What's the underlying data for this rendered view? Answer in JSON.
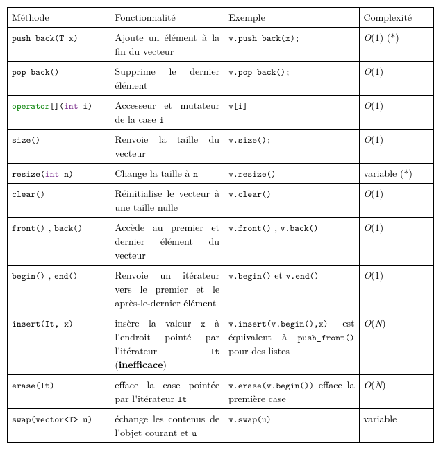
{
  "headers": {
    "method": "Méthode",
    "functionality": "Fonctionnalité",
    "example": "Exemple",
    "complexity": "Complexité"
  },
  "rows": [
    {
      "method_html": "<span class='mono'>push_back(T x)</span>",
      "func_html": "Ajoute un élément à la fin du vecteur",
      "example_html": "<span class='mono'>v.push_back(x);</span>",
      "complexity_html": "<span class='math'>O</span>(1) (*)"
    },
    {
      "method_html": "<span class='mono'>pop_back()</span>",
      "func_html": "Supprime le dernier élément",
      "example_html": "<span class='mono'>v.pop_back();</span>",
      "complexity_html": "<span class='math'>O</span>(1)"
    },
    {
      "method_html": "<span class='kw-operator'>operator</span><span class='mono'>[](</span><span class='kw-type'>int</span><span class='mono'> i)</span>",
      "func_html": "Accesseur et muta&shy;teur de la case <span class='mono'>i</span>",
      "example_html": "<span class='mono'>v[i]</span>",
      "complexity_html": "<span class='math'>O</span>(1)"
    },
    {
      "method_html": "<span class='mono'>size()</span>",
      "func_html": "Renvoie la taille du vecteur",
      "example_html": "<span class='mono'>v.size();</span>",
      "complexity_html": "<span class='math'>O</span>(1)"
    },
    {
      "method_html": "<span class='mono'>resize(</span><span class='kw-type'>int</span><span class='mono'> n)</span>",
      "func_html": "Change la taille à <span class='mono'>n</span>",
      "example_html": "<span class='mono'>v.resize()</span>",
      "complexity_html": "variable (*)"
    },
    {
      "method_html": "<span class='mono'>clear()</span>",
      "func_html": "Réinitialise le vec&shy;teur à une taille nulle",
      "example_html": "<span class='mono'>v.clear()</span>",
      "complexity_html": "<span class='math'>O</span>(1)"
    },
    {
      "method_html": "<span class='mono'>front()</span> , <span class='mono'>back()</span>",
      "func_html": "Accède au premier et dernier élément du vecteur",
      "example_html": "<span class='mono'>v.front()</span> , <span class='mono'>v.back()</span>",
      "complexity_html": "<span class='math'>O</span>(1)"
    },
    {
      "method_html": "<span class='mono'>begin()</span> , <span class='mono'>end()</span>",
      "func_html": "Renvoie un itérateur vers le premier et le après-le-dernier élé&shy;ment",
      "example_html": "<span class='mono'>v.begin()</span> et <span class='mono'>v.end()</span>",
      "complexity_html": "<span class='math'>O</span>(1)"
    },
    {
      "method_html": "<span class='mono'>insert(It, x)</span>",
      "func_html": "insère la valeur <span class='mono'>x</span> à l'endroit pointé par l'itérateur <span class='mono'>It</span> (<span class='bold'>inefficace</span>)",
      "example_html": "<span class='mono'>v.insert(v.begin(),x)</span> est équivalent à <span class='mono'>push_front()</span> pour des listes",
      "complexity_html": "<span class='math'>O</span>(<span class='math'>N</span>)"
    },
    {
      "method_html": "<span class='mono'>erase(It)</span>",
      "func_html": "efface la case pointée par l'itérateur <span class='mono'>It</span>",
      "example_html": "<span class='mono'>v.erase(v.begin())</span> efface la première case",
      "complexity_html": "<span class='math'>O</span>(<span class='math'>N</span>)"
    },
    {
      "method_html": "<span class='mono'>swap(vector&lt;T&gt; u)</span>",
      "func_html": "échange les contenus de l'objet courant et <span class='mono'>u</span>",
      "example_html": "<span class='mono'>v.swap(u)</span>",
      "complexity_html": "variable"
    }
  ]
}
